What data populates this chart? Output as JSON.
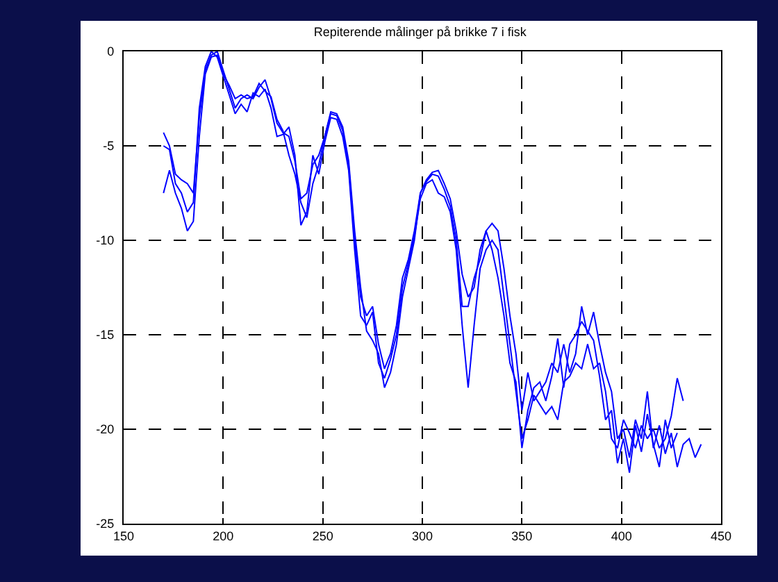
{
  "chart_data": {
    "type": "line",
    "title": "Repiterende målinger på brikke 7 i fisk",
    "xlim": [
      150,
      450
    ],
    "xticks": [
      150,
      200,
      250,
      300,
      350,
      400,
      450
    ],
    "ylim": [
      -25,
      0
    ],
    "yticks": [
      -25,
      -20,
      -15,
      -10,
      -5,
      0
    ],
    "grid": true,
    "line_style": "solid",
    "marker": "none",
    "series": [
      {
        "color": "#0000ff",
        "x": [
          170,
          173,
          176,
          179,
          182,
          185,
          188,
          191,
          194,
          197,
          200,
          203,
          206,
          209,
          212,
          215,
          218,
          221,
          224,
          227,
          230,
          233,
          236,
          239,
          242,
          245,
          248,
          251,
          254,
          257,
          260,
          263,
          266,
          269,
          272,
          275,
          278,
          281,
          284,
          287,
          290,
          293,
          296,
          299,
          302,
          305,
          308,
          311,
          314,
          317,
          320,
          323,
          326,
          329,
          332,
          335,
          338,
          341,
          344,
          347,
          350,
          353,
          356,
          359,
          362,
          365,
          368,
          371,
          374,
          377,
          380,
          383,
          386,
          389,
          392,
          395,
          398,
          401,
          404,
          407,
          410,
          413,
          416,
          419,
          422,
          425,
          428,
          431,
          434,
          437,
          440
        ],
        "values": [
          -4.3,
          -5,
          -6.5,
          -6.8,
          -7,
          -7.5,
          -3.5,
          -1,
          -0.2,
          0,
          -1,
          -2,
          -3,
          -2.5,
          -2.3,
          -2.5,
          -1.9,
          -1.5,
          -2.5,
          -3.8,
          -4.3,
          -4.5,
          -5.8,
          -7.8,
          -7.5,
          -6,
          -5.5,
          -4.5,
          -3.3,
          -3.4,
          -4.2,
          -6,
          -10,
          -13,
          -14,
          -13.5,
          -15.5,
          -16.8,
          -16,
          -14.5,
          -12,
          -11,
          -9.5,
          -7.5,
          -6.8,
          -6.4,
          -6.3,
          -7,
          -7.8,
          -9.5,
          -11.8,
          -13,
          -12.5,
          -10.5,
          -9.5,
          -9.1,
          -9.5,
          -11.5,
          -14,
          -16,
          -19,
          -17,
          -18.5,
          -18,
          -17.5,
          -16.5,
          -17,
          -15.5,
          -17,
          -16,
          -13.5,
          -15,
          -13.8,
          -15.5,
          -17,
          -18,
          -20.5,
          -20,
          -21.5,
          -19.5,
          -20.5,
          -18,
          -21,
          -19.8,
          -21.3,
          -20.2,
          -22,
          -20.8,
          -20.5,
          -21.5,
          -20.8
        ]
      },
      {
        "color": "#0000ff",
        "x": [
          170,
          173,
          176,
          179,
          182,
          185,
          188,
          191,
          194,
          197,
          200,
          203,
          206,
          209,
          212,
          215,
          218,
          221,
          224,
          227,
          230,
          233,
          236,
          239,
          242,
          245,
          248,
          251,
          254,
          257,
          260,
          263,
          266,
          269,
          272,
          275,
          278,
          281,
          284,
          287,
          290,
          293,
          296,
          299,
          302,
          305,
          308,
          311,
          314,
          317,
          320,
          323,
          326,
          329,
          332,
          335,
          338,
          341,
          344,
          347,
          350,
          353,
          356,
          359,
          362,
          365,
          368,
          371,
          374,
          377,
          380,
          383,
          386,
          389,
          392,
          395,
          398,
          401,
          404,
          407,
          410,
          413,
          416,
          419,
          422,
          425,
          428,
          431
        ],
        "values": [
          -5,
          -5.2,
          -7,
          -7.5,
          -8.5,
          -8,
          -3,
          -0.8,
          0,
          -0.3,
          -1.3,
          -2.3,
          -3.3,
          -2.8,
          -3.2,
          -2.2,
          -2.4,
          -2,
          -3,
          -4.5,
          -4.4,
          -4,
          -5.5,
          -9.2,
          -8.5,
          -5.5,
          -6.5,
          -4.8,
          -3.5,
          -3.6,
          -4.5,
          -6.3,
          -10.5,
          -14,
          -14.5,
          -13.8,
          -16.5,
          -17.3,
          -16.3,
          -15,
          -12.5,
          -11.2,
          -9.8,
          -7.8,
          -7,
          -6.8,
          -7.5,
          -7.7,
          -8.5,
          -10.5,
          -14.5,
          -17.8,
          -14.5,
          -11.5,
          -10.5,
          -10,
          -10.5,
          -13,
          -15.5,
          -18,
          -20.5,
          -19.5,
          -18.2,
          -18.7,
          -19.2,
          -18.8,
          -19.5,
          -17.5,
          -17.2,
          -16.5,
          -16.8,
          -15.5,
          -16.8,
          -16.5,
          -18,
          -20.5,
          -21,
          -19.5,
          -20.2,
          -21,
          -19.8,
          -20.5,
          -20,
          -21,
          -20.5,
          -19.3,
          -17.3,
          -18.5
        ]
      },
      {
        "color": "#0000ff",
        "x": [
          170,
          173,
          176,
          179,
          182,
          185,
          188,
          191,
          194,
          197,
          200,
          203,
          206,
          209,
          212,
          215,
          218,
          221,
          224,
          227,
          230,
          233,
          236,
          239,
          242,
          245,
          248,
          251,
          254,
          257,
          260,
          263,
          266,
          269,
          272,
          275,
          278,
          281,
          284,
          287,
          290,
          293,
          296,
          299,
          302,
          305,
          308,
          311,
          314,
          317,
          320,
          323,
          326,
          329,
          332,
          335,
          338,
          341,
          344,
          347,
          350,
          353,
          356,
          359,
          362,
          365,
          368,
          371,
          374,
          377,
          380,
          383,
          386,
          389,
          392,
          395,
          398,
          401,
          404,
          407,
          410,
          413,
          416,
          419,
          422,
          425,
          428
        ],
        "values": [
          -7.5,
          -6.3,
          -7.5,
          -8.3,
          -9.5,
          -9,
          -4.5,
          -1.2,
          -0.3,
          -0.2,
          -1.2,
          -1.8,
          -2.5,
          -2.3,
          -2.5,
          -2.4,
          -1.7,
          -2.1,
          -2.4,
          -3.6,
          -4.2,
          -5.5,
          -6.5,
          -8,
          -8.8,
          -7,
          -6,
          -4.5,
          -3.2,
          -3.3,
          -4,
          -5.8,
          -9.5,
          -12.5,
          -14.8,
          -15.3,
          -16,
          -17.8,
          -17,
          -15.5,
          -13,
          -11.5,
          -10,
          -7.5,
          -6.9,
          -6.5,
          -6.6,
          -7.3,
          -8.2,
          -10,
          -13.5,
          -13.5,
          -12,
          -11,
          -9.5,
          -10.5,
          -12,
          -14,
          -16.5,
          -17.5,
          -21,
          -19,
          -17.8,
          -17.5,
          -18.5,
          -17.2,
          -15.2,
          -17.8,
          -15.5,
          -15,
          -14.3,
          -14.8,
          -15.3,
          -17.2,
          -19.5,
          -19,
          -21.8,
          -20.5,
          -22.3,
          -19.8,
          -21.2,
          -19.2,
          -20.8,
          -22,
          -19.5,
          -21,
          -20.2
        ]
      }
    ]
  }
}
